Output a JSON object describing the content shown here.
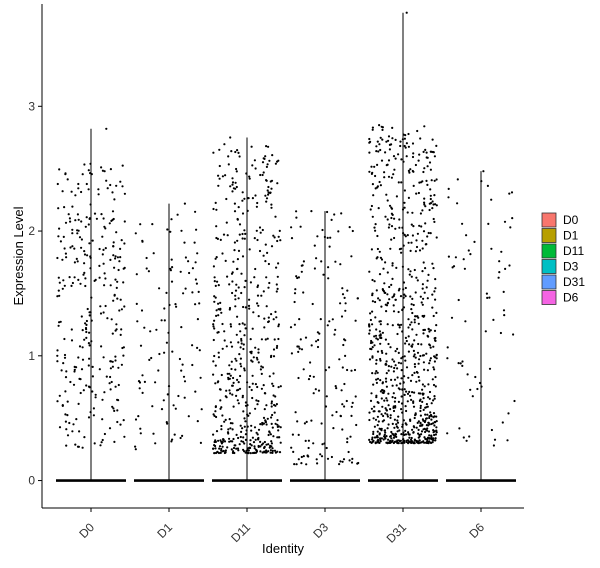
{
  "chart_data": {
    "type": "violin",
    "xlabel": "Identity",
    "ylabel": "Expression Level",
    "ylim": [
      -0.22,
      3.82
    ],
    "yticks": [
      0,
      1,
      2,
      3
    ],
    "ytick_labels": [
      "0",
      "1",
      "2",
      "3"
    ],
    "categories": [
      "D0",
      "D1",
      "D11",
      "D3",
      "D31",
      "D6"
    ],
    "groups": [
      {
        "name": "D0",
        "max": 2.82,
        "color": "#F8766D",
        "n_points": 300,
        "band": [
          0.25,
          2.55
        ],
        "skew": 1.0
      },
      {
        "name": "D1",
        "max": 2.22,
        "color": "#B79F00",
        "n_points": 110,
        "band": [
          0.25,
          2.22
        ],
        "skew": 1.0
      },
      {
        "name": "D11",
        "max": 2.75,
        "color": "#00BA38",
        "n_points": 560,
        "band": [
          0.22,
          2.7
        ],
        "skew": 1.9
      },
      {
        "name": "D3",
        "max": 2.16,
        "color": "#00BFC4",
        "n_points": 160,
        "band": [
          0.13,
          2.16
        ],
        "skew": 1.6
      },
      {
        "name": "D31",
        "max": 3.75,
        "color": "#619CFF",
        "n_points": 850,
        "band": [
          0.3,
          2.85
        ],
        "skew": 2.0
      },
      {
        "name": "D6",
        "max": 2.48,
        "color": "#F564E3",
        "n_points": 70,
        "band": [
          0.25,
          2.48
        ],
        "skew": 1.0
      }
    ],
    "legend": {
      "placement": "right",
      "entries": [
        "D0",
        "D1",
        "D11",
        "D3",
        "D31",
        "D6"
      ]
    },
    "grid": false
  }
}
